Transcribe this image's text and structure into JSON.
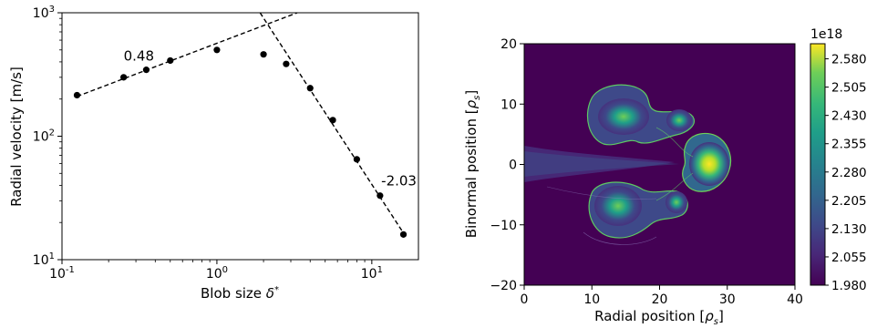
{
  "chart_data": [
    {
      "type": "scatter",
      "xlabel": "Blob size δ*",
      "ylabel": "Radial velocity [m/s]",
      "xscale": "log",
      "yscale": "log",
      "xlim": [
        0.1,
        20
      ],
      "ylim": [
        10,
        1000
      ],
      "x_ticks": [
        0.1,
        1,
        10
      ],
      "x_tick_labels": [
        "10^-1",
        "10^0",
        "10^1"
      ],
      "y_ticks": [
        10,
        100,
        1000
      ],
      "y_tick_labels": [
        "10^1",
        "10^2",
        "10^3"
      ],
      "grid": false,
      "points": [
        {
          "x": 0.125,
          "y": 215
        },
        {
          "x": 0.25,
          "y": 300
        },
        {
          "x": 0.35,
          "y": 345
        },
        {
          "x": 0.5,
          "y": 410
        },
        {
          "x": 1.0,
          "y": 500
        },
        {
          "x": 2.0,
          "y": 460
        },
        {
          "x": 2.8,
          "y": 385
        },
        {
          "x": 4.0,
          "y": 245
        },
        {
          "x": 5.6,
          "y": 135
        },
        {
          "x": 8.0,
          "y": 65
        },
        {
          "x": 11.3,
          "y": 33
        },
        {
          "x": 16.0,
          "y": 16
        }
      ],
      "fits": [
        {
          "label": "0.48",
          "x": [
            0.125,
            3.3
          ],
          "y": [
            210,
            1000
          ],
          "style": "dashed"
        },
        {
          "label": "-2.03",
          "x": [
            1.9,
            16.5
          ],
          "y": [
            1000,
            15.5
          ],
          "style": "dashed"
        }
      ],
      "annotations": [
        {
          "text": "0.48",
          "x": 0.25,
          "y": 410
        },
        {
          "text": "-2.03",
          "x": 11.5,
          "y": 40
        }
      ],
      "point_color": "#000000"
    },
    {
      "type": "heatmap",
      "xlabel": "Radial position [ρs]",
      "ylabel": "Binormal position [ρs]",
      "xlim": [
        0,
        40
      ],
      "ylim": [
        -20,
        20
      ],
      "x_ticks": [
        0,
        10,
        20,
        30,
        40
      ],
      "y_ticks": [
        -20,
        -10,
        0,
        10,
        20
      ],
      "colormap": "viridis",
      "colorbar": {
        "min": 1.98,
        "max": 2.62,
        "ticks": [
          "1.980",
          "2.055",
          "2.130",
          "2.205",
          "2.280",
          "2.355",
          "2.430",
          "2.505",
          "2.580"
        ],
        "offset_label": "1e18"
      }
    }
  ]
}
